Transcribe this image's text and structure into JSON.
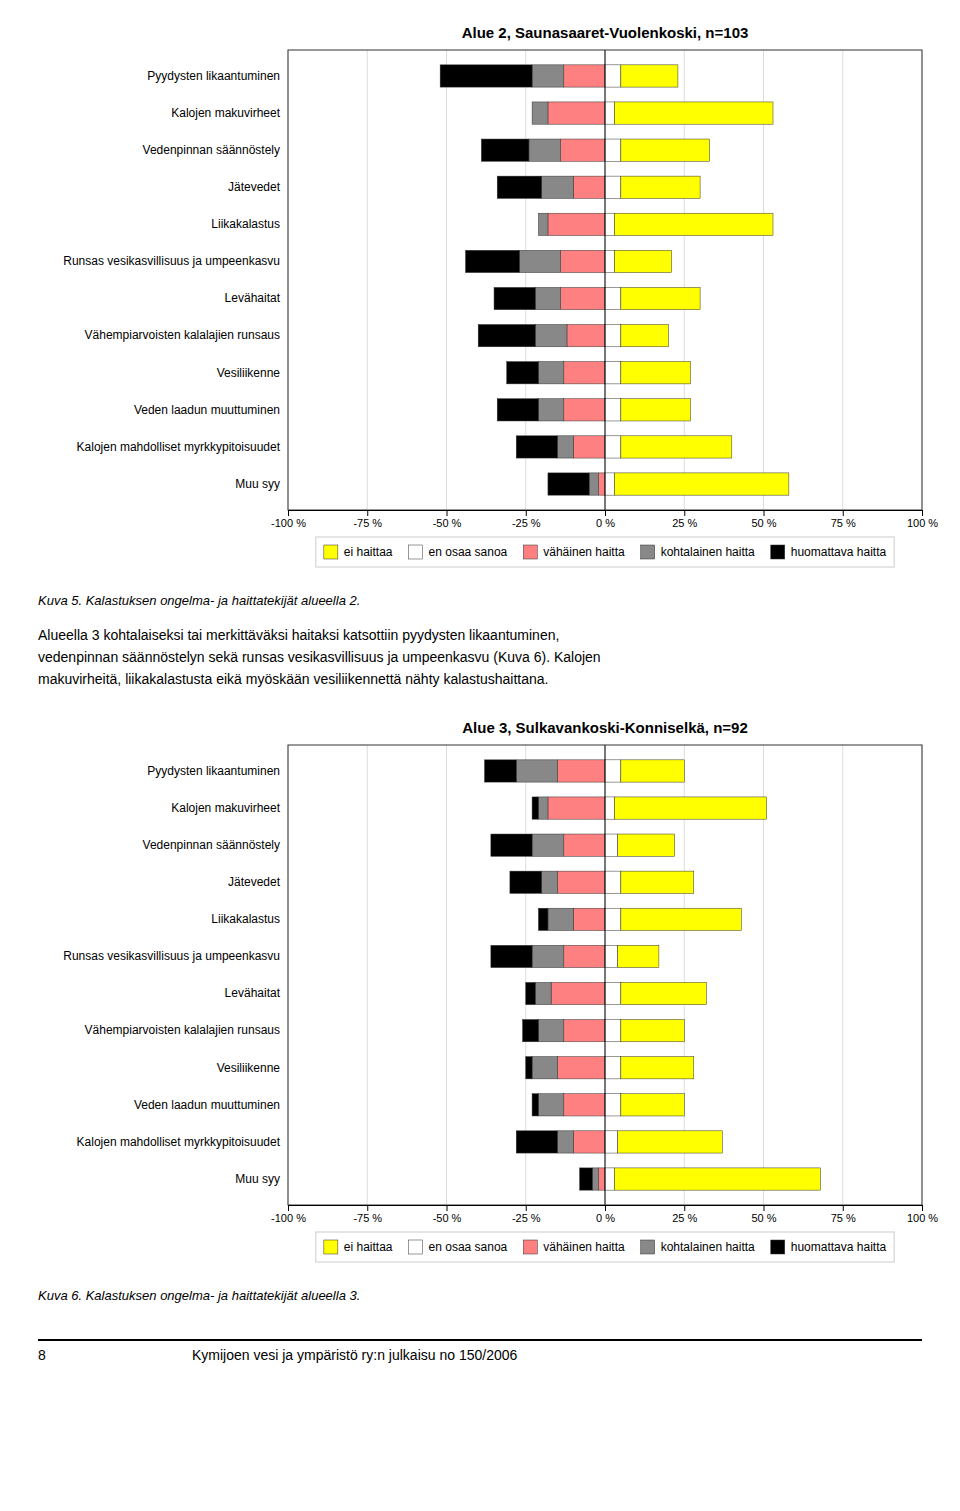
{
  "chart_data": [
    {
      "type": "bar",
      "orientation": "horizontal",
      "stacked": true,
      "grid": true,
      "legend": "bottom",
      "title": "Alue 2, Saunasaaret-Vuolenkoski, n=103",
      "categories": [
        "Pyydysten likaantuminen",
        "Kalojen makuvirheet",
        "Vedenpinnan säännöstely",
        "Jätevedet",
        "Liikakalastus",
        "Runsas vesikasvillisuus ja umpeenkasvu",
        "Levähaitat",
        "Vähempiarvoisten kalalajien runsaus",
        "Vesiliikenne",
        "Veden laadun muuttuminen",
        "Kalojen mahdolliset myrkkypitoisuudet",
        "Muu syy"
      ],
      "series": [
        {
          "name": "vähäinen haitta",
          "color": "#FF8080",
          "values": [
            -13,
            -18,
            -14,
            -10,
            -18,
            -14,
            -14,
            -12,
            -13,
            -13,
            -10,
            -2
          ]
        },
        {
          "name": "kohtalainen haitta",
          "color": "#888888",
          "values": [
            -10,
            -5,
            -10,
            -10,
            -3,
            -13,
            -8,
            -10,
            -8,
            -8,
            -5,
            -3
          ]
        },
        {
          "name": "huomattava haitta",
          "color": "#000000",
          "values": [
            -29,
            0,
            -15,
            -14,
            0,
            -17,
            -13,
            -18,
            -10,
            -13,
            -13,
            -13
          ]
        },
        {
          "name": "en osaa sanoa",
          "color": "#FFFFFF",
          "values": [
            5,
            3,
            5,
            5,
            3,
            3,
            5,
            5,
            5,
            5,
            5,
            3
          ]
        },
        {
          "name": "ei haittaa",
          "color": "#FFFF00",
          "values": [
            18,
            50,
            28,
            25,
            50,
            18,
            25,
            15,
            22,
            22,
            35,
            55
          ]
        }
      ],
      "xlim": [
        -100,
        100
      ],
      "xticks": [
        {
          "value": -100,
          "label": "-100 %"
        },
        {
          "value": -75,
          "label": "-75 %"
        },
        {
          "value": -50,
          "label": "-50 %"
        },
        {
          "value": -25,
          "label": "-25 %"
        },
        {
          "value": 0,
          "label": "0 %"
        },
        {
          "value": 25,
          "label": "25 %"
        },
        {
          "value": 50,
          "label": "50 %"
        },
        {
          "value": 75,
          "label": "75 %"
        },
        {
          "value": 100,
          "label": "100 %"
        }
      ],
      "annotations": [
        "Kuva 5. Kalastuksen ongelma- ja haittatekijät alueella 2.",
        "Alueella 3 kohtalaiseksi tai merkittäväksi haitaksi katsottiin pyydysten likaantuminen,",
        "vedenpinnan säännöstelyn sekä runsas vesikasvillisuus ja umpeenkasvu (Kuva 6). Kalojen",
        "makuvirheitä, liikakalastusta eikä myöskään vesiliikennettä nähty kalastushaittana."
      ]
    },
    {
      "type": "bar",
      "orientation": "horizontal",
      "stacked": true,
      "grid": true,
      "legend": "bottom",
      "title": "Alue 3, Sulkavankoski-Konniselkä, n=92",
      "categories": [
        "Pyydysten likaantuminen",
        "Kalojen makuvirheet",
        "Vedenpinnan säännöstely",
        "Jätevedet",
        "Liikakalastus",
        "Runsas vesikasvillisuus ja umpeenkasvu",
        "Levähaitat",
        "Vähempiarvoisten kalalajien runsaus",
        "Vesiliikenne",
        "Veden laadun muuttuminen",
        "Kalojen mahdolliset myrkkypitoisuudet",
        "Muu syy"
      ],
      "series": [
        {
          "name": "vähäinen haitta",
          "color": "#FF8080",
          "values": [
            -15,
            -18,
            -13,
            -15,
            -10,
            -13,
            -17,
            -13,
            -15,
            -13,
            -10,
            -2
          ]
        },
        {
          "name": "kohtalainen haitta",
          "color": "#888888",
          "values": [
            -13,
            -3,
            -10,
            -5,
            -8,
            -10,
            -5,
            -8,
            -8,
            -8,
            -5,
            -2
          ]
        },
        {
          "name": "huomattava haitta",
          "color": "#000000",
          "values": [
            -10,
            -2,
            -13,
            -10,
            -3,
            -13,
            -3,
            -5,
            -2,
            -2,
            -13,
            -4
          ]
        },
        {
          "name": "en osaa sanoa",
          "color": "#FFFFFF",
          "values": [
            5,
            3,
            4,
            5,
            5,
            4,
            5,
            5,
            5,
            5,
            4,
            3
          ]
        },
        {
          "name": "ei haittaa",
          "color": "#FFFF00",
          "values": [
            20,
            48,
            18,
            23,
            38,
            13,
            27,
            20,
            23,
            20,
            33,
            65
          ]
        }
      ],
      "xlim": [
        -100,
        100
      ],
      "xticks": [
        {
          "value": -100,
          "label": "-100 %"
        },
        {
          "value": -75,
          "label": "-75 %"
        },
        {
          "value": -50,
          "label": "-50 %"
        },
        {
          "value": -25,
          "label": "-25 %"
        },
        {
          "value": 0,
          "label": "0 %"
        },
        {
          "value": 25,
          "label": "25 %"
        },
        {
          "value": 50,
          "label": "50 %"
        },
        {
          "value": 75,
          "label": "75 %"
        },
        {
          "value": 100,
          "label": "100 %"
        }
      ],
      "annotations": [
        "Kuva 6. Kalastuksen ongelma- ja haittatekijät alueella 3.",
        "8",
        "Kymijoen vesi ja ympäristö ry:n julkaisu no 150/2006"
      ]
    }
  ]
}
